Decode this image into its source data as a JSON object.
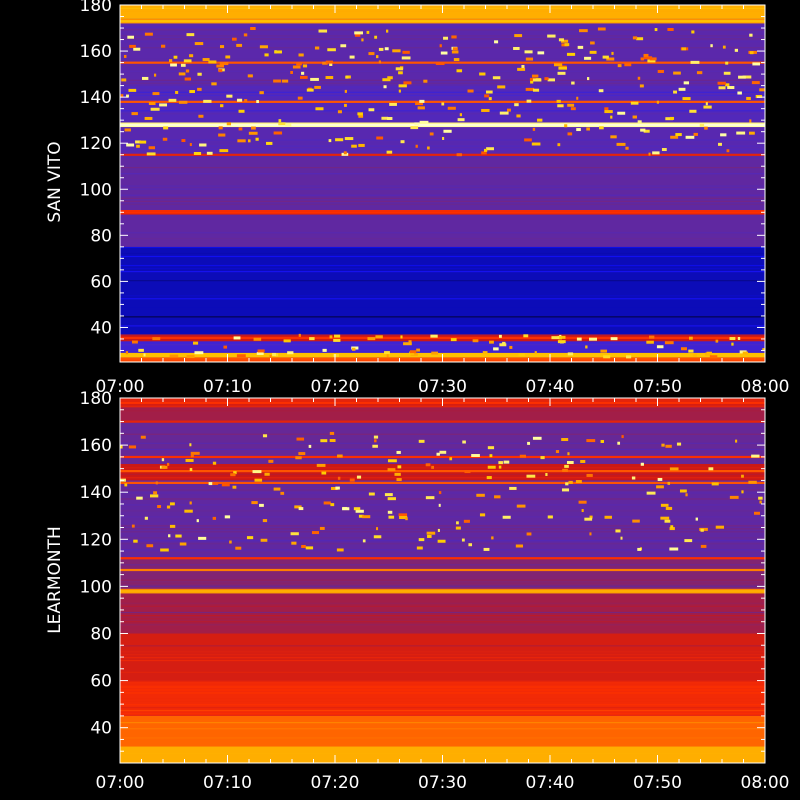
{
  "chart_data": [
    {
      "type": "heatmap",
      "ylabel": "SAN VITO",
      "ylim": [
        25,
        180
      ],
      "yticks": [
        40,
        60,
        80,
        100,
        120,
        140,
        160,
        180
      ],
      "xlim": [
        "07:00",
        "08:00"
      ],
      "xticks": [
        "07:00",
        "07:10",
        "07:20",
        "07:30",
        "07:40",
        "07:50",
        "08:00"
      ],
      "colormap": [
        "#000000",
        "#1010ff",
        "#4a28c8",
        "#6a2890",
        "#c81818",
        "#ff3000",
        "#ff8c00",
        "#ffd200",
        "#ffffa0",
        "#ffffff"
      ],
      "bands": [
        {
          "from": 25,
          "to": 27,
          "level": 0.6
        },
        {
          "from": 27,
          "to": 29,
          "level": 0.75
        },
        {
          "from": 29,
          "to": 34,
          "level": 0.2
        },
        {
          "from": 34,
          "to": 37,
          "level": 0.45
        },
        {
          "from": 37,
          "to": 75,
          "level": 0.08
        },
        {
          "from": 75,
          "to": 89,
          "level": 0.3
        },
        {
          "from": 89,
          "to": 91,
          "level": 0.5
        },
        {
          "from": 91,
          "to": 115,
          "level": 0.3
        },
        {
          "from": 115,
          "to": 127,
          "level": 0.27
        },
        {
          "from": 127,
          "to": 129,
          "level": 0.9
        },
        {
          "from": 129,
          "to": 145,
          "level": 0.25
        },
        {
          "from": 145,
          "to": 172,
          "level": 0.28
        },
        {
          "from": 172,
          "to": 174,
          "level": 0.7
        },
        {
          "from": 174,
          "to": 180,
          "level": 0.72
        }
      ],
      "lines": [
        {
          "y": 35.5,
          "level": 0.55
        },
        {
          "y": 90,
          "level": 0.55
        },
        {
          "y": 115,
          "level": 0.5
        },
        {
          "y": 128,
          "level": 0.95
        },
        {
          "y": 138,
          "level": 0.6
        },
        {
          "y": 155,
          "level": 0.6
        },
        {
          "y": 173,
          "level": 0.75
        },
        {
          "y": 180,
          "level": 0.72
        }
      ]
    },
    {
      "type": "heatmap",
      "ylabel": "LEARMONTH",
      "ylim": [
        25,
        180
      ],
      "yticks": [
        40,
        60,
        80,
        100,
        120,
        140,
        160,
        180
      ],
      "xlim": [
        "07:00",
        "08:00"
      ],
      "xticks": [
        "07:00",
        "07:10",
        "07:20",
        "07:30",
        "07:40",
        "07:50",
        "08:00"
      ],
      "colormap": [
        "#000000",
        "#1010ff",
        "#4a28c8",
        "#6a2890",
        "#c81818",
        "#ff3000",
        "#ff8c00",
        "#ffd200",
        "#ffffa0",
        "#ffffff"
      ],
      "bands": [
        {
          "from": 25,
          "to": 32,
          "level": 0.72
        },
        {
          "from": 32,
          "to": 45,
          "level": 0.62
        },
        {
          "from": 45,
          "to": 60,
          "level": 0.53
        },
        {
          "from": 60,
          "to": 80,
          "level": 0.47
        },
        {
          "from": 80,
          "to": 97,
          "level": 0.4
        },
        {
          "from": 97,
          "to": 99,
          "level": 0.7
        },
        {
          "from": 99,
          "to": 112,
          "level": 0.36
        },
        {
          "from": 112,
          "to": 145,
          "level": 0.3
        },
        {
          "from": 145,
          "to": 152,
          "level": 0.45
        },
        {
          "from": 152,
          "to": 170,
          "level": 0.32
        },
        {
          "from": 170,
          "to": 176,
          "level": 0.4
        },
        {
          "from": 176,
          "to": 180,
          "level": 0.5
        }
      ],
      "lines": [
        {
          "y": 98,
          "level": 0.72
        },
        {
          "y": 107,
          "level": 0.65
        },
        {
          "y": 112,
          "level": 0.55
        },
        {
          "y": 144,
          "level": 0.6
        },
        {
          "y": 149,
          "level": 0.6
        },
        {
          "y": 155,
          "level": 0.55
        },
        {
          "y": 170,
          "level": 0.5
        },
        {
          "y": 178,
          "level": 0.55
        }
      ]
    }
  ]
}
